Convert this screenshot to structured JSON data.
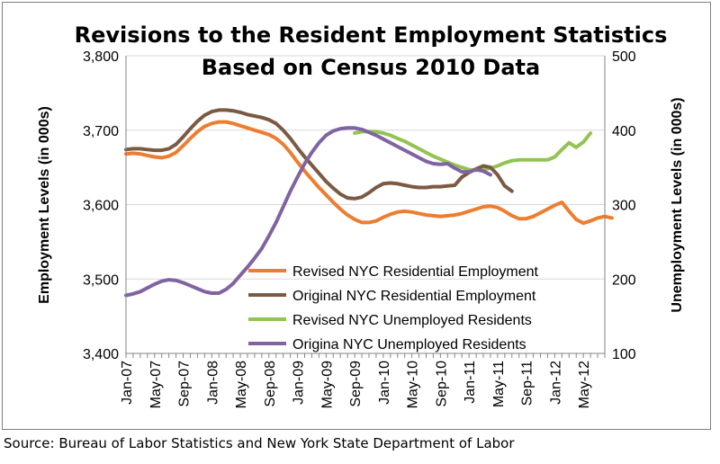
{
  "chart_data": {
    "type": "line",
    "title": "Revisions to the Resident Employment Statistics",
    "subtitle": "Based on Census 2010 Data",
    "ylabel": "Employment Levels (in 000s)",
    "y2label": "Unemployment Levels (in 000s)",
    "ylim": [
      3400,
      3800
    ],
    "y2lim": [
      100,
      500
    ],
    "yticks": [
      "3,400",
      "3,500",
      "3,600",
      "3,700",
      "3,800"
    ],
    "y2ticks": [
      "100",
      "200",
      "300",
      "400",
      "500"
    ],
    "xticks": [
      "Jan-07",
      "May-07",
      "Sep-07",
      "Jan-08",
      "May-08",
      "Sep-08",
      "Jan-09",
      "May-09",
      "Sep-09",
      "Jan-10",
      "May-10",
      "Sep-10",
      "Jan-11",
      "May-11",
      "Sep-11",
      "Jan-12",
      "May-12"
    ],
    "x_start": "Jan-07",
    "grid": true,
    "legend": "center-bottom",
    "series": [
      {
        "name": "Revised NYC Residential Employment",
        "color": "#ED7D31",
        "axis": "left",
        "values": [
          3668,
          3669,
          3668,
          3666,
          3664,
          3663,
          3665,
          3670,
          3679,
          3689,
          3698,
          3705,
          3709,
          3711,
          3711,
          3709,
          3706,
          3703,
          3700,
          3697,
          3694,
          3689,
          3681,
          3670,
          3657,
          3645,
          3634,
          3623,
          3613,
          3603,
          3594,
          3586,
          3580,
          3576,
          3576,
          3578,
          3583,
          3587,
          3590,
          3591,
          3590,
          3588,
          3586,
          3585,
          3584,
          3585,
          3586,
          3588,
          3591,
          3594,
          3597,
          3598,
          3596,
          3591,
          3585,
          3581,
          3581,
          3584,
          3589,
          3594,
          3599,
          3603,
          3591,
          3580,
          3575,
          3578,
          3582,
          3584,
          3582
        ]
      },
      {
        "name": "Original NYC Residential Employment",
        "color": "#7B5A43",
        "axis": "left",
        "values": [
          3674,
          3675,
          3675,
          3674,
          3673,
          3673,
          3675,
          3681,
          3691,
          3702,
          3712,
          3720,
          3725,
          3727,
          3727,
          3726,
          3724,
          3721,
          3719,
          3717,
          3714,
          3709,
          3700,
          3689,
          3676,
          3664,
          3653,
          3642,
          3631,
          3622,
          3614,
          3609,
          3608,
          3610,
          3616,
          3623,
          3628,
          3629,
          3628,
          3626,
          3624,
          3623,
          3623,
          3624,
          3624,
          3625,
          3626,
          3637,
          3643,
          3648,
          3652,
          3650,
          3640,
          3625,
          3618
        ]
      },
      {
        "name": "Revised NYC Unemployed Residents",
        "color": "#92C353",
        "axis": "right",
        "values": [
          null,
          null,
          null,
          null,
          null,
          null,
          null,
          null,
          null,
          null,
          null,
          null,
          null,
          null,
          null,
          null,
          null,
          null,
          null,
          null,
          null,
          null,
          null,
          null,
          null,
          null,
          null,
          null,
          null,
          null,
          null,
          null,
          396,
          398,
          398,
          398,
          396,
          393,
          389,
          385,
          380,
          375,
          370,
          365,
          361,
          357,
          353,
          350,
          347,
          346,
          347,
          349,
          352,
          356,
          359,
          360,
          360,
          360,
          360,
          360,
          364,
          374,
          383,
          377,
          384,
          396
        ]
      },
      {
        "name": "Origina NYC Unemployed Residents",
        "color": "#8064A2",
        "axis": "right",
        "values": [
          178,
          180,
          183,
          188,
          193,
          197,
          199,
          198,
          195,
          191,
          187,
          183,
          181,
          181,
          186,
          194,
          205,
          216,
          228,
          241,
          258,
          276,
          297,
          318,
          337,
          355,
          370,
          383,
          393,
          399,
          402,
          403,
          403,
          401,
          397,
          393,
          388,
          383,
          378,
          373,
          368,
          363,
          358,
          355,
          354,
          355,
          349,
          344,
          344,
          347,
          345,
          340
        ]
      }
    ]
  },
  "footer": {
    "source": "Source: Bureau of Labor Statistics and New York State Department of Labor"
  }
}
